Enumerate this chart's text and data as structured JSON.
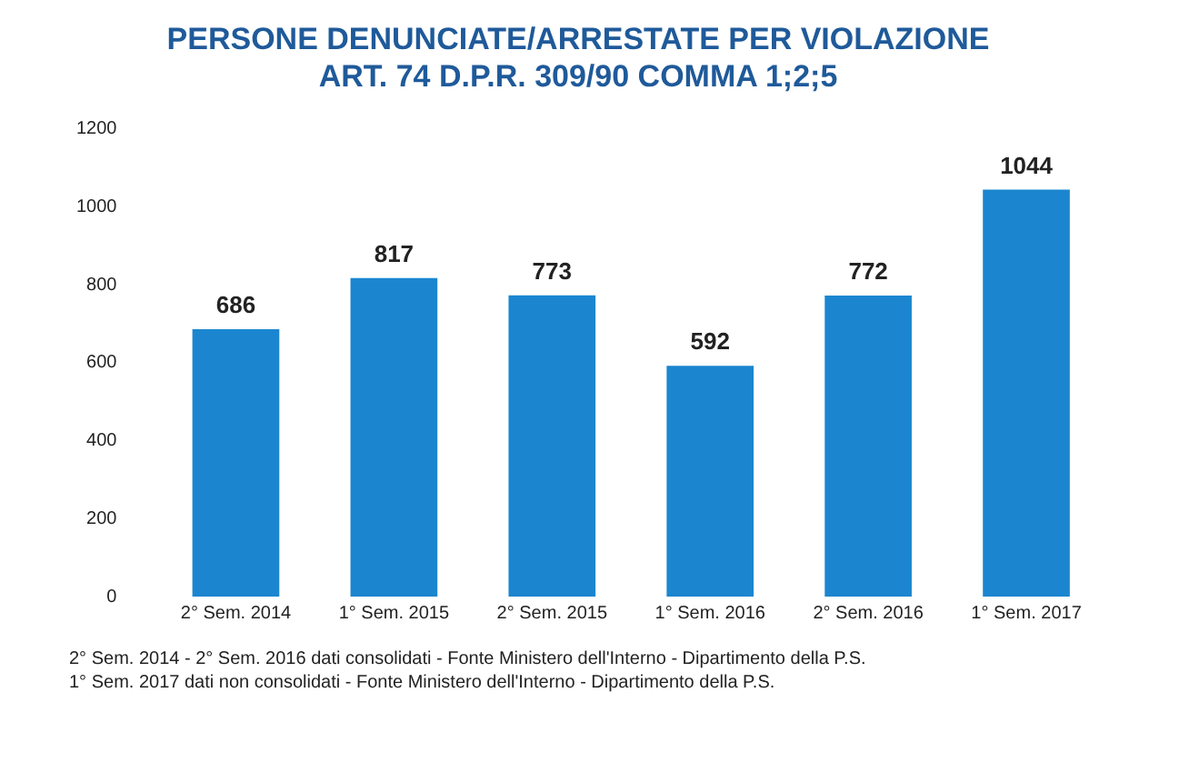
{
  "chart_data": {
    "type": "bar",
    "title": "PERSONE DENUNCIATE/ARRESTATE PER VIOLAZIONE\nART. 74 D.P.R. 309/90 COMMA 1;2;5",
    "categories": [
      "2° Sem. 2014",
      "1° Sem. 2015",
      "2° Sem. 2015",
      "1° Sem. 2016",
      "2° Sem. 2016",
      "1° Sem. 2017"
    ],
    "values": [
      686,
      817,
      773,
      592,
      772,
      1044
    ],
    "color": "#1b86cf",
    "ylim": [
      0,
      1200
    ],
    "yticks": [
      0,
      200,
      400,
      600,
      800,
      1000,
      1200
    ],
    "grid": false,
    "legend": false,
    "data_labels": true,
    "annotations": [
      "2° Sem. 2014 - 2° Sem. 2016 dati consolidati - Fonte Ministero dell'Interno - Dipartimento della P.S.",
      "1° Sem. 2017 dati non consolidati - Fonte Ministero dell'Interno - Dipartimento della P.S."
    ]
  }
}
